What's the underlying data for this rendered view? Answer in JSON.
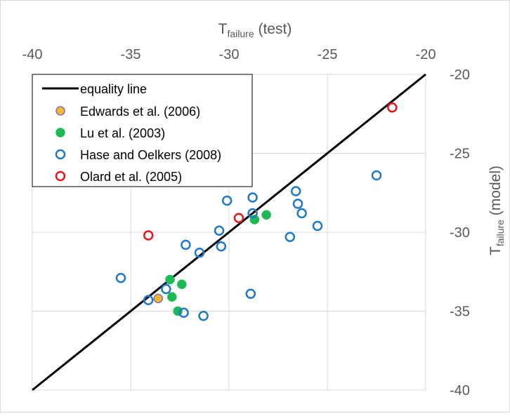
{
  "chart_data": {
    "type": "scatter",
    "title": "",
    "xlabel": {
      "main": "T",
      "sub": "failure",
      "suffix": " (test)"
    },
    "ylabel": {
      "main": "T",
      "sub": "failure",
      "suffix": " (model)"
    },
    "xlim": [
      -40,
      -20
    ],
    "ylim": [
      -40,
      -20
    ],
    "x_ticks": [
      "-40",
      "-35",
      "-30",
      "-25",
      "-20"
    ],
    "y_ticks": [
      "-20",
      "-25",
      "-30",
      "-35",
      "-40"
    ],
    "x_axis_position": "top",
    "y_axis_position": "right",
    "grid": true,
    "legend_position": "top-left",
    "equality_line": {
      "name": "equality line",
      "from": [
        -40,
        -40
      ],
      "to": [
        -20,
        -20
      ],
      "color": "#000000"
    },
    "series": [
      {
        "name": "Edwards et al. (2006)",
        "marker": "filled-circle",
        "fill": "#F5B731",
        "stroke": "#7F6FB5",
        "points": [
          [
            -33.6,
            -34.2
          ]
        ]
      },
      {
        "name": "Lu et al. (2003)",
        "marker": "filled-circle",
        "fill": "#1DB954",
        "stroke": "#1DB954",
        "points": [
          [
            -33.0,
            -33.0
          ],
          [
            -32.4,
            -33.3
          ],
          [
            -32.9,
            -34.1
          ],
          [
            -32.6,
            -35.0
          ],
          [
            -28.7,
            -29.2
          ],
          [
            -28.1,
            -28.9
          ]
        ]
      },
      {
        "name": "Hase and Oelkers (2008)",
        "marker": "open-circle",
        "fill": "none",
        "stroke": "#1F78C8",
        "points": [
          [
            -35.5,
            -32.9
          ],
          [
            -34.1,
            -34.3
          ],
          [
            -33.2,
            -33.6
          ],
          [
            -32.3,
            -35.1
          ],
          [
            -31.3,
            -35.3
          ],
          [
            -32.2,
            -30.8
          ],
          [
            -31.5,
            -31.3
          ],
          [
            -30.4,
            -30.9
          ],
          [
            -30.5,
            -29.9
          ],
          [
            -30.1,
            -28.0
          ],
          [
            -28.8,
            -27.8
          ],
          [
            -28.8,
            -28.8
          ],
          [
            -28.9,
            -33.9
          ],
          [
            -26.9,
            -30.3
          ],
          [
            -26.6,
            -27.4
          ],
          [
            -26.5,
            -28.2
          ],
          [
            -26.3,
            -28.8
          ],
          [
            -25.5,
            -29.6
          ],
          [
            -22.5,
            -26.4
          ]
        ]
      },
      {
        "name": "Olard et al. (2005)",
        "marker": "open-circle",
        "fill": "none",
        "stroke": "#E8161B",
        "points": [
          [
            -34.1,
            -30.2
          ],
          [
            -29.5,
            -29.1
          ],
          [
            -21.7,
            -22.1
          ]
        ]
      }
    ]
  }
}
